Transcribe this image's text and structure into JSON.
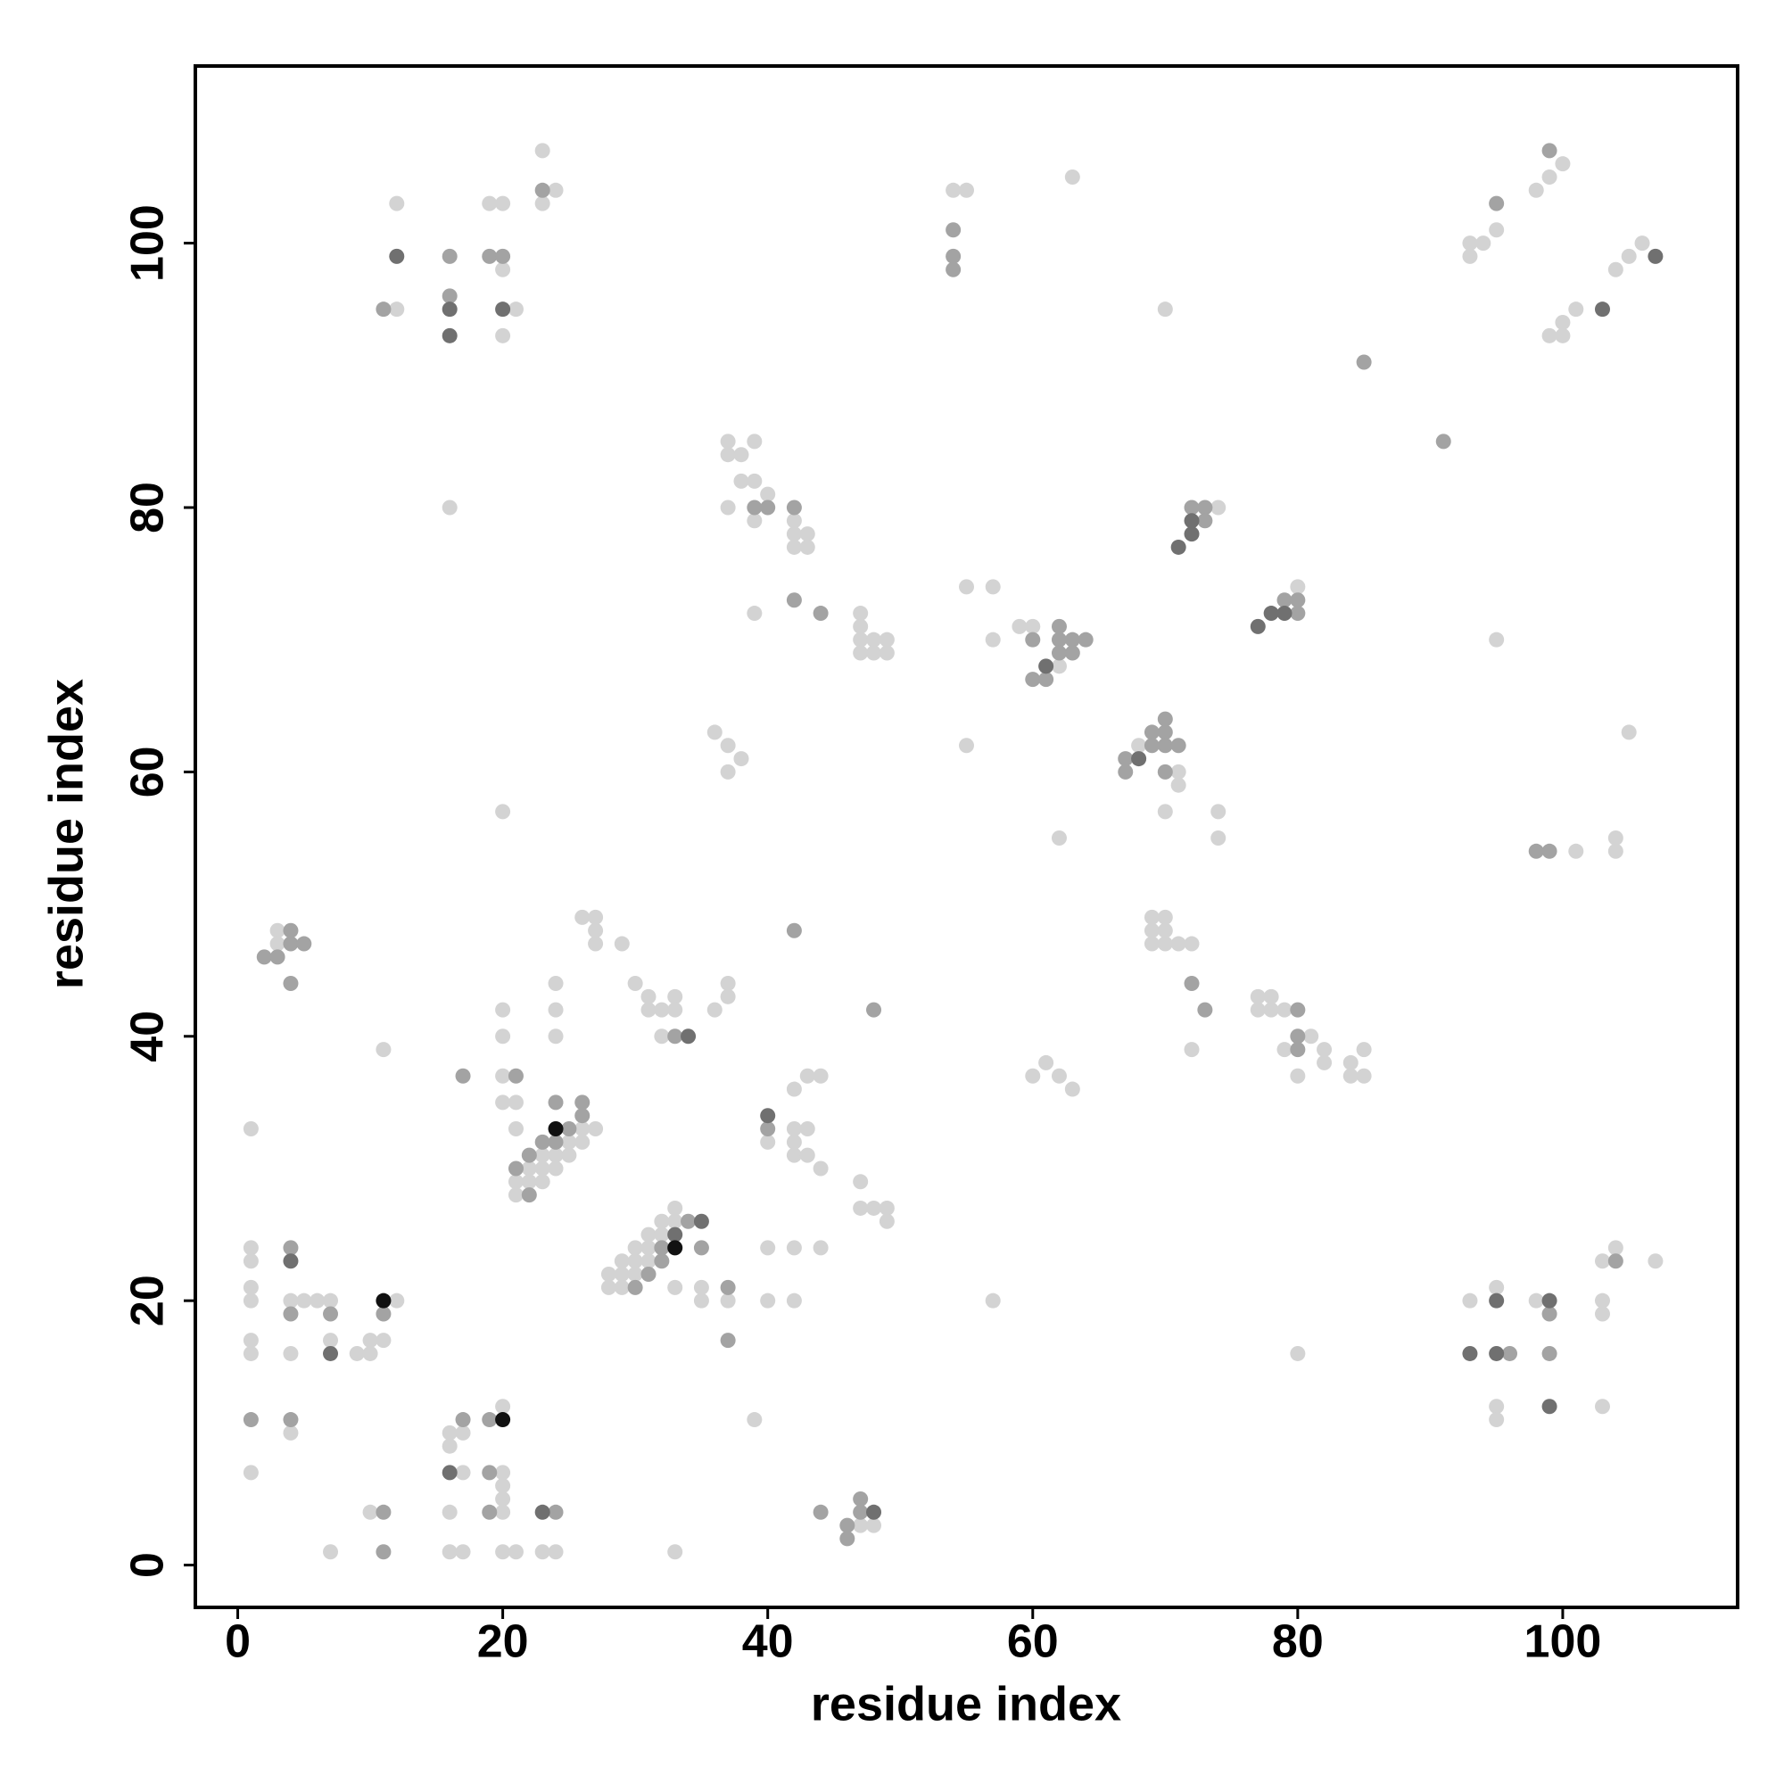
{
  "chart_data": {
    "type": "scatter",
    "x_label": "residue index",
    "y_label": "residue index",
    "xlim": [
      -3.2,
      113.2
    ],
    "ylim": [
      -3.2,
      113.4
    ],
    "xticks": [
      0,
      20,
      40,
      60,
      80,
      100
    ],
    "yticks": [
      0,
      20,
      40,
      60,
      80,
      100
    ],
    "series": [
      {
        "color": "#d3d3d3",
        "x": [
          23,
          12,
          19,
          20,
          24,
          23,
          20,
          12,
          21,
          20,
          16,
          20,
          54,
          55,
          63,
          70,
          100,
          99,
          98,
          95,
          93,
          94,
          93,
          106,
          105,
          104,
          101,
          100,
          99,
          100,
          95,
          105,
          104,
          104,
          101,
          37,
          39,
          37,
          38,
          38,
          39,
          40,
          37,
          39,
          42,
          42,
          43,
          42,
          43,
          39,
          47,
          47,
          47,
          48,
          49,
          47,
          48,
          49,
          36,
          37,
          38,
          37,
          55,
          57,
          57,
          59,
          60,
          62,
          55,
          62,
          74,
          80,
          68,
          71,
          71,
          70,
          74,
          74,
          3,
          3,
          11,
          1,
          26,
          27,
          27,
          27,
          29,
          24,
          24,
          24,
          20,
          20,
          20,
          20,
          21,
          21,
          26,
          27,
          25,
          26,
          23,
          24,
          25,
          22,
          23,
          24,
          21,
          22,
          23,
          21,
          30,
          31,
          33,
          31,
          32,
          33,
          32,
          36,
          37,
          37,
          40,
          42,
          43,
          44,
          42,
          43,
          42,
          42,
          43,
          44,
          47,
          47,
          48,
          49,
          49,
          33,
          32,
          33,
          31,
          32,
          30,
          31,
          29,
          30,
          31,
          28,
          29,
          30,
          28,
          29,
          33,
          35,
          35,
          37,
          40,
          42,
          44,
          40,
          42,
          1,
          1,
          1,
          1,
          4,
          5,
          6,
          7,
          1,
          1,
          4,
          7,
          9,
          10,
          10,
          11,
          12,
          4,
          1,
          7,
          10,
          16,
          16,
          17,
          17,
          16,
          16,
          17,
          20,
          20,
          20,
          20,
          20,
          20,
          21,
          23,
          24,
          33,
          39,
          47,
          48,
          69,
          70,
          69,
          70,
          69,
          70,
          71,
          72,
          72,
          77,
          78,
          77,
          78,
          79,
          81,
          79,
          82,
          85,
          82,
          84,
          80,
          84,
          85,
          60,
          61,
          62,
          63,
          57,
          80,
          93,
          95,
          98,
          103,
          103,
          103,
          104,
          107,
          95,
          95,
          103
        ],
        "y": [
          107,
          103,
          103,
          103,
          104,
          103,
          98,
          95,
          95,
          93,
          80,
          57,
          104,
          104,
          105,
          95,
          106,
          105,
          104,
          101,
          100,
          100,
          99,
          100,
          99,
          98,
          95,
          94,
          93,
          93,
          70,
          63,
          55,
          54,
          54,
          85,
          85,
          84,
          84,
          82,
          82,
          81,
          80,
          79,
          79,
          78,
          78,
          77,
          77,
          72,
          72,
          71,
          70,
          70,
          70,
          69,
          69,
          69,
          63,
          62,
          61,
          60,
          74,
          74,
          70,
          71,
          71,
          68,
          62,
          55,
          80,
          74,
          62,
          60,
          59,
          57,
          57,
          55,
          48,
          47,
          39,
          33,
          49,
          49,
          48,
          47,
          47,
          44,
          42,
          40,
          42,
          40,
          37,
          35,
          35,
          33,
          33,
          33,
          32,
          32,
          31,
          31,
          31,
          30,
          30,
          30,
          29,
          29,
          29,
          28,
          44,
          43,
          43,
          42,
          42,
          42,
          40,
          42,
          44,
          43,
          32,
          36,
          37,
          37,
          33,
          33,
          32,
          31,
          31,
          30,
          29,
          27,
          27,
          27,
          26,
          27,
          26,
          26,
          25,
          25,
          24,
          24,
          23,
          23,
          23,
          22,
          22,
          22,
          21,
          21,
          21,
          21,
          20,
          20,
          24,
          24,
          24,
          20,
          20,
          24,
          23,
          21,
          20,
          20,
          20,
          20,
          20,
          17,
          16,
          16,
          17,
          16,
          16,
          17,
          17,
          20,
          10,
          7,
          1,
          4,
          10,
          9,
          10,
          7,
          4,
          1,
          1,
          12,
          7,
          6,
          5,
          4,
          1,
          1,
          1,
          1,
          1,
          11,
          3,
          3,
          49,
          49,
          48,
          48,
          47,
          47,
          47,
          47,
          39,
          43,
          43,
          42,
          42,
          42,
          40,
          39,
          39,
          39,
          38,
          38,
          37,
          37,
          37,
          37,
          38,
          37,
          36,
          20,
          16,
          20,
          21,
          20,
          20,
          19,
          23,
          24,
          23,
          12,
          11,
          12
        ]
      },
      {
        "color": "#a3a3a3",
        "x": [
          23,
          16,
          19,
          20,
          11,
          16,
          54,
          54,
          54,
          85,
          91,
          99,
          95,
          98,
          99,
          39,
          40,
          42,
          42,
          44,
          60,
          62,
          62,
          63,
          64,
          62,
          63,
          60,
          61,
          72,
          73,
          73,
          79,
          80,
          80,
          70,
          69,
          70,
          69,
          70,
          71,
          67,
          67,
          70,
          4,
          4,
          5,
          2,
          3,
          4,
          42,
          21,
          17,
          24,
          26,
          25,
          23,
          24,
          26,
          22,
          21,
          22,
          33,
          48,
          40,
          34,
          32,
          35,
          32,
          31,
          30,
          37,
          37,
          4,
          4,
          7,
          11,
          1,
          4,
          11,
          11,
          17,
          19,
          19,
          19,
          24,
          44,
          47,
          47,
          46,
          46,
          72,
          73,
          80,
          80,
          80,
          99,
          104,
          96,
          99
        ],
        "y": [
          104,
          99,
          99,
          99,
          95,
          96,
          101,
          99,
          98,
          91,
          85,
          107,
          103,
          54,
          54,
          80,
          80,
          80,
          73,
          72,
          70,
          71,
          70,
          70,
          70,
          69,
          69,
          67,
          67,
          80,
          80,
          79,
          73,
          73,
          72,
          64,
          63,
          63,
          62,
          62,
          62,
          61,
          60,
          60,
          48,
          47,
          47,
          46,
          46,
          44,
          48,
          37,
          37,
          35,
          35,
          33,
          32,
          32,
          34,
          31,
          30,
          28,
          40,
          42,
          33,
          26,
          24,
          24,
          23,
          22,
          21,
          21,
          17,
          24,
          19,
          19,
          19,
          11,
          11,
          4,
          1,
          11,
          11,
          7,
          4,
          4,
          4,
          5,
          4,
          3,
          2,
          44,
          42,
          42,
          40,
          39,
          19,
          23,
          16,
          16
        ]
      },
      {
        "color": "#707070",
        "x": [
          12,
          16,
          16,
          20,
          103,
          107,
          61,
          71,
          72,
          72,
          77,
          78,
          79,
          68,
          34,
          40,
          35,
          33,
          4,
          7,
          16,
          23,
          48,
          95,
          99,
          93,
          95,
          99
        ],
        "y": [
          99,
          95,
          93,
          95,
          95,
          99,
          68,
          77,
          78,
          79,
          71,
          72,
          72,
          61,
          40,
          34,
          26,
          25,
          23,
          16,
          7,
          4,
          4,
          20,
          20,
          16,
          16,
          12
        ]
      },
      {
        "color": "#111111",
        "x": [
          24,
          33,
          11,
          20
        ],
        "y": [
          33,
          24,
          20,
          11
        ]
      }
    ]
  }
}
